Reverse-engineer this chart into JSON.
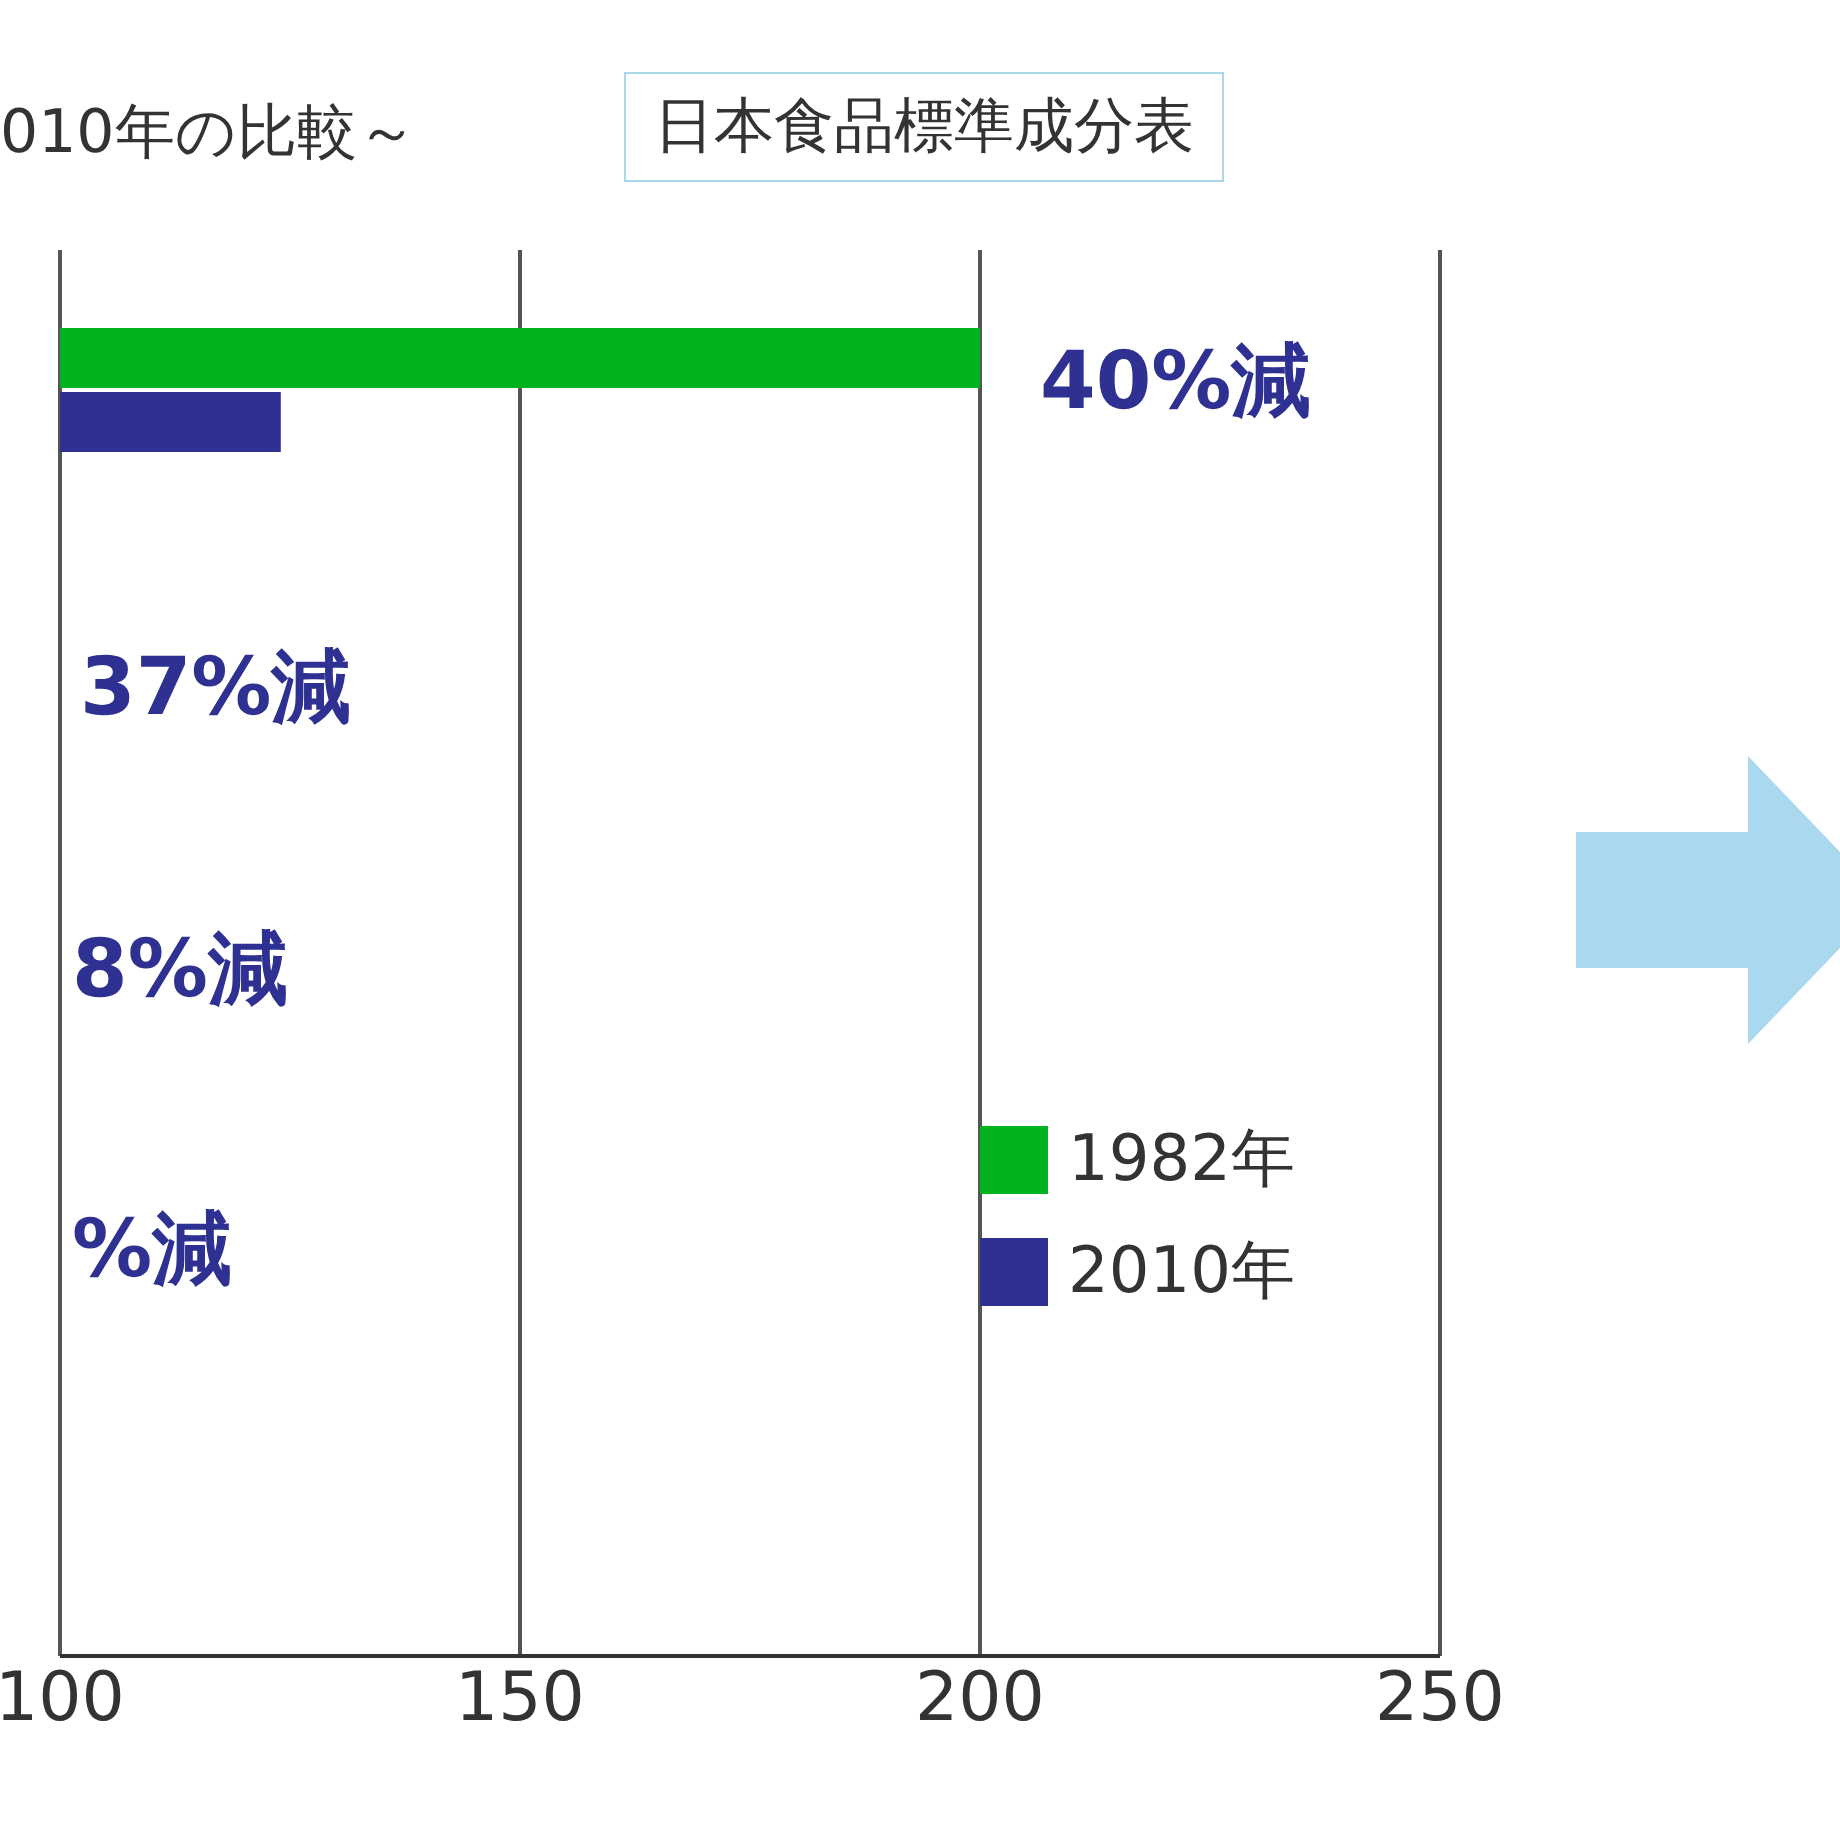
{
  "chart_data": {
    "type": "bar",
    "orientation": "horizontal",
    "title": "010年の比較～",
    "categories": [
      null,
      null,
      null,
      null,
      null
    ],
    "series": [
      {
        "name": "1982年",
        "color": "#00b21e",
        "values": [
          200,
          null,
          null,
          null,
          null
        ]
      },
      {
        "name": "2010年",
        "color": "#2e3192",
        "values": [
          124,
          null,
          null,
          null,
          null
        ]
      }
    ],
    "xlim": [
      100,
      250
    ],
    "xticks": [
      100,
      150,
      200,
      250
    ],
    "grid": "x",
    "legend": "bottom right",
    "annotations": [
      "日本食品標準成分表",
      "40%減",
      "37%減",
      "8%減",
      "%減"
    ]
  }
}
